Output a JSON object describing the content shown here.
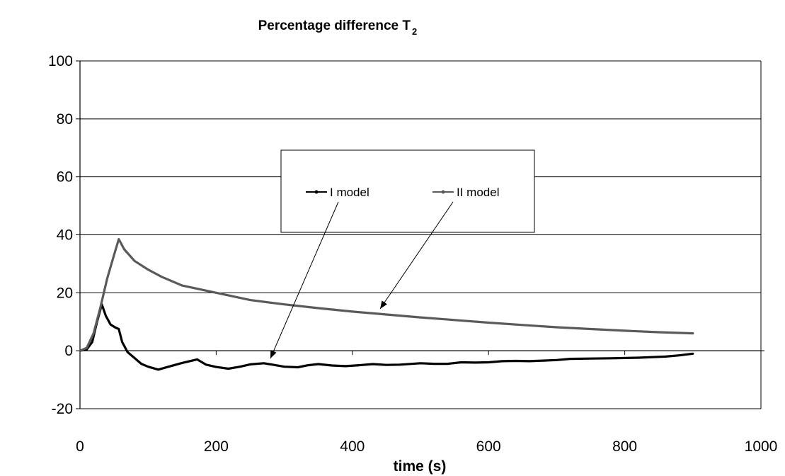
{
  "chart_data": {
    "type": "line",
    "title": "Percentage difference T",
    "title_subscript": "2",
    "xlabel": "time (s)",
    "ylabel": "",
    "xlim": [
      0,
      1000
    ],
    "ylim": [
      -20,
      100
    ],
    "xticks": [
      0,
      200,
      400,
      600,
      800,
      1000
    ],
    "yticks": [
      -20,
      0,
      20,
      40,
      60,
      80,
      100
    ],
    "grid": "horizontal",
    "legend_position": "center",
    "series": [
      {
        "name": "I model",
        "color": "#000000",
        "x": [
          0,
          10,
          18,
          25,
          32,
          38,
          45,
          52,
          57,
          62,
          70,
          80,
          90,
          100,
          115,
          130,
          150,
          172,
          185,
          200,
          218,
          235,
          250,
          270,
          285,
          300,
          320,
          335,
          350,
          370,
          390,
          410,
          430,
          450,
          470,
          500,
          520,
          540,
          560,
          580,
          600,
          620,
          640,
          660,
          680,
          700,
          720,
          750,
          780,
          820,
          860,
          880,
          900
        ],
        "y": [
          0,
          0.5,
          3,
          10,
          16,
          12,
          9,
          8,
          7.5,
          3,
          -0.5,
          -2.5,
          -4.5,
          -5.5,
          -6.5,
          -5.5,
          -4.2,
          -3,
          -4.8,
          -5.6,
          -6.2,
          -5.5,
          -4.7,
          -4.3,
          -4.9,
          -5.5,
          -5.7,
          -5.0,
          -4.6,
          -5.1,
          -5.3,
          -5.0,
          -4.6,
          -4.9,
          -4.8,
          -4.3,
          -4.5,
          -4.5,
          -4.0,
          -4.1,
          -4.0,
          -3.6,
          -3.5,
          -3.6,
          -3.4,
          -3.2,
          -2.8,
          -2.7,
          -2.6,
          -2.4,
          -2.0,
          -1.6,
          -1.0
        ]
      },
      {
        "name": "II model",
        "color": "#5a5a5a",
        "x": [
          0,
          10,
          20,
          30,
          40,
          50,
          57,
          65,
          80,
          100,
          120,
          150,
          200,
          250,
          300,
          350,
          400,
          450,
          500,
          550,
          600,
          650,
          700,
          750,
          800,
          850,
          900
        ],
        "y": [
          0,
          1,
          6,
          15,
          25,
          33,
          38.5,
          35,
          31,
          28,
          25.5,
          22.5,
          20,
          17.5,
          16,
          14.7,
          13.5,
          12.5,
          11.5,
          10.6,
          9.7,
          8.9,
          8.1,
          7.5,
          6.9,
          6.4,
          6.0
        ]
      }
    ],
    "annotations": [
      {
        "type": "arrow",
        "target": "I model"
      },
      {
        "type": "arrow",
        "target": "II model"
      }
    ]
  }
}
